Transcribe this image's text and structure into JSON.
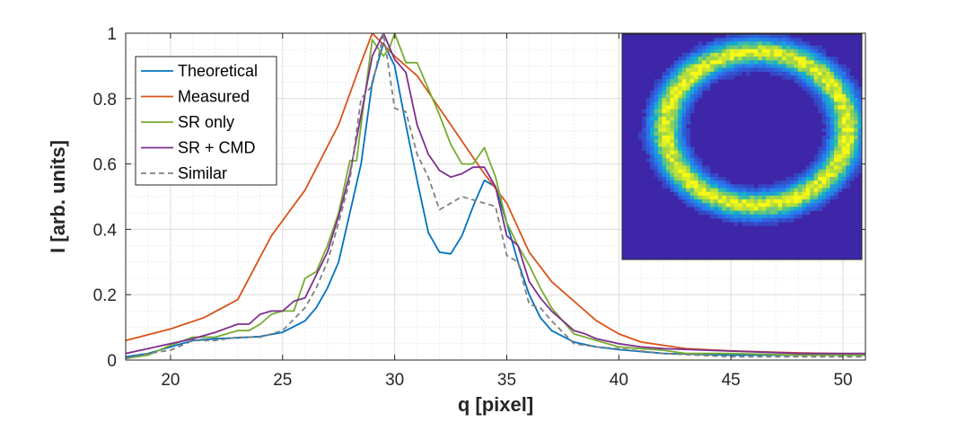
{
  "chart_data": {
    "type": "line",
    "title": "",
    "xlabel": "q [pixel]",
    "ylabel": "I [arb. units]",
    "xlim": [
      18,
      51
    ],
    "ylim": [
      0,
      1
    ],
    "xticks": [
      20,
      25,
      30,
      35,
      40,
      45,
      50
    ],
    "yticks": [
      0,
      0.2,
      0.4,
      0.6,
      0.8,
      1
    ],
    "xtick_labels": [
      "20",
      "25",
      "30",
      "35",
      "40",
      "45",
      "50"
    ],
    "ytick_labels": [
      "0",
      "0.2",
      "0.4",
      "0.6",
      "0.8",
      "1"
    ],
    "grid": true,
    "legend_position": "top-left",
    "series": [
      {
        "name": "Theoretical",
        "color": "#0072BD",
        "dash": "solid",
        "points": [
          [
            18,
            0.01
          ],
          [
            19,
            0.02
          ],
          [
            20,
            0.04
          ],
          [
            21,
            0.06
          ],
          [
            22,
            0.065
          ],
          [
            23,
            0.068
          ],
          [
            24,
            0.072
          ],
          [
            25,
            0.085
          ],
          [
            26,
            0.12
          ],
          [
            26.5,
            0.16
          ],
          [
            27,
            0.22
          ],
          [
            27.5,
            0.3
          ],
          [
            28,
            0.45
          ],
          [
            28.5,
            0.6
          ],
          [
            29,
            0.85
          ],
          [
            29.5,
            0.97
          ],
          [
            30,
            0.9
          ],
          [
            30.5,
            0.72
          ],
          [
            31,
            0.55
          ],
          [
            31.5,
            0.39
          ],
          [
            32,
            0.33
          ],
          [
            32.5,
            0.325
          ],
          [
            33,
            0.38
          ],
          [
            33.5,
            0.47
          ],
          [
            34,
            0.55
          ],
          [
            34.5,
            0.53
          ],
          [
            35,
            0.42
          ],
          [
            35.5,
            0.3
          ],
          [
            36,
            0.2
          ],
          [
            36.5,
            0.13
          ],
          [
            37,
            0.09
          ],
          [
            38,
            0.055
          ],
          [
            39,
            0.04
          ],
          [
            40,
            0.032
          ],
          [
            42,
            0.02
          ],
          [
            45,
            0.015
          ],
          [
            48,
            0.015
          ],
          [
            51,
            0.015
          ]
        ]
      },
      {
        "name": "Measured",
        "color": "#D95319",
        "dash": "solid",
        "points": [
          [
            18,
            0.06
          ],
          [
            20,
            0.095
          ],
          [
            21.5,
            0.13
          ],
          [
            23,
            0.185
          ],
          [
            24.5,
            0.38
          ],
          [
            26,
            0.52
          ],
          [
            27.5,
            0.72
          ],
          [
            28.5,
            0.91
          ],
          [
            29,
            1.0
          ],
          [
            30,
            0.93
          ],
          [
            31,
            0.87
          ],
          [
            32,
            0.77
          ],
          [
            33,
            0.67
          ],
          [
            34,
            0.57
          ],
          [
            35,
            0.48
          ],
          [
            36,
            0.33
          ],
          [
            37,
            0.24
          ],
          [
            38,
            0.18
          ],
          [
            39,
            0.12
          ],
          [
            40,
            0.08
          ],
          [
            41,
            0.055
          ],
          [
            42,
            0.045
          ],
          [
            43,
            0.035
          ],
          [
            45,
            0.028
          ],
          [
            48,
            0.022
          ],
          [
            51,
            0.018
          ]
        ]
      },
      {
        "name": "SR only",
        "color": "#77AC30",
        "dash": "solid",
        "points": [
          [
            18,
            0.005
          ],
          [
            19,
            0.015
          ],
          [
            20,
            0.045
          ],
          [
            21,
            0.07
          ],
          [
            22,
            0.07
          ],
          [
            23,
            0.09
          ],
          [
            23.5,
            0.09
          ],
          [
            24,
            0.11
          ],
          [
            24.5,
            0.14
          ],
          [
            25,
            0.15
          ],
          [
            25.5,
            0.15
          ],
          [
            26,
            0.25
          ],
          [
            26.5,
            0.27
          ],
          [
            27,
            0.35
          ],
          [
            27.5,
            0.45
          ],
          [
            28,
            0.61
          ],
          [
            28.3,
            0.61
          ],
          [
            28.5,
            0.72
          ],
          [
            29,
            0.98
          ],
          [
            29.5,
            0.93
          ],
          [
            29.8,
            0.96
          ],
          [
            30,
            1.0
          ],
          [
            30.5,
            0.91
          ],
          [
            31,
            0.91
          ],
          [
            32,
            0.75
          ],
          [
            32.5,
            0.66
          ],
          [
            33,
            0.6
          ],
          [
            33.5,
            0.6
          ],
          [
            34,
            0.65
          ],
          [
            34.5,
            0.56
          ],
          [
            35,
            0.42
          ],
          [
            35.5,
            0.35
          ],
          [
            36,
            0.29
          ],
          [
            36.5,
            0.22
          ],
          [
            37,
            0.16
          ],
          [
            37.5,
            0.12
          ],
          [
            38,
            0.08
          ],
          [
            38.5,
            0.07
          ],
          [
            39,
            0.06
          ],
          [
            40,
            0.04
          ],
          [
            41,
            0.035
          ],
          [
            42,
            0.03
          ],
          [
            43,
            0.02
          ],
          [
            45,
            0.02
          ],
          [
            48,
            0.015
          ],
          [
            51,
            0.015
          ]
        ]
      },
      {
        "name": "SR + CMD",
        "color": "#7E2F8E",
        "dash": "solid",
        "points": [
          [
            18,
            0.02
          ],
          [
            19,
            0.035
          ],
          [
            20,
            0.05
          ],
          [
            21,
            0.065
          ],
          [
            22,
            0.085
          ],
          [
            23,
            0.11
          ],
          [
            23.5,
            0.11
          ],
          [
            24,
            0.14
          ],
          [
            24.5,
            0.15
          ],
          [
            25,
            0.15
          ],
          [
            25.5,
            0.18
          ],
          [
            26,
            0.19
          ],
          [
            26.5,
            0.26
          ],
          [
            27,
            0.33
          ],
          [
            27.5,
            0.44
          ],
          [
            28,
            0.57
          ],
          [
            28.5,
            0.75
          ],
          [
            29,
            0.93
          ],
          [
            29.5,
            1.0
          ],
          [
            30,
            0.92
          ],
          [
            30.5,
            0.88
          ],
          [
            31,
            0.72
          ],
          [
            31.5,
            0.63
          ],
          [
            32,
            0.58
          ],
          [
            32.5,
            0.56
          ],
          [
            33,
            0.57
          ],
          [
            33.5,
            0.59
          ],
          [
            34,
            0.59
          ],
          [
            34.5,
            0.53
          ],
          [
            35,
            0.38
          ],
          [
            35.5,
            0.35
          ],
          [
            36,
            0.24
          ],
          [
            36.5,
            0.19
          ],
          [
            37,
            0.15
          ],
          [
            37.5,
            0.12
          ],
          [
            38,
            0.09
          ],
          [
            38.5,
            0.08
          ],
          [
            39,
            0.065
          ],
          [
            40,
            0.05
          ],
          [
            41,
            0.04
          ],
          [
            42,
            0.035
          ],
          [
            44,
            0.03
          ],
          [
            46,
            0.025
          ],
          [
            48,
            0.02
          ],
          [
            51,
            0.02
          ]
        ]
      },
      {
        "name": "Similar",
        "color": "#808080",
        "dash": "dashed",
        "points": [
          [
            18,
            0.005
          ],
          [
            19,
            0.02
          ],
          [
            20,
            0.03
          ],
          [
            21,
            0.06
          ],
          [
            22,
            0.06
          ],
          [
            23,
            0.07
          ],
          [
            24,
            0.07
          ],
          [
            25,
            0.09
          ],
          [
            26,
            0.16
          ],
          [
            26.5,
            0.22
          ],
          [
            27,
            0.3
          ],
          [
            27.5,
            0.42
          ],
          [
            28,
            0.55
          ],
          [
            28.5,
            0.8
          ],
          [
            29,
            0.84
          ],
          [
            29.5,
            1.0
          ],
          [
            30,
            0.77
          ],
          [
            30.5,
            0.76
          ],
          [
            31,
            0.63
          ],
          [
            31.5,
            0.56
          ],
          [
            32,
            0.46
          ],
          [
            32.5,
            0.48
          ],
          [
            33,
            0.5
          ],
          [
            33.5,
            0.49
          ],
          [
            34,
            0.48
          ],
          [
            34.5,
            0.47
          ],
          [
            35,
            0.32
          ],
          [
            35.5,
            0.3
          ],
          [
            36,
            0.17
          ],
          [
            36.5,
            0.16
          ],
          [
            37,
            0.12
          ],
          [
            38,
            0.05
          ],
          [
            39,
            0.04
          ],
          [
            40,
            0.035
          ],
          [
            42,
            0.02
          ],
          [
            45,
            0.01
          ],
          [
            48,
            0.01
          ],
          [
            51,
            0.01
          ]
        ]
      }
    ],
    "inset": {
      "type": "heatmap",
      "description_colormap": "parula",
      "pattern": "ring",
      "ring_center": [
        0.56,
        0.42
      ],
      "ring_radius_x": 0.38,
      "ring_radius_y": 0.34,
      "ring_width": 0.07
    }
  },
  "colors": {
    "inset_background": "#3E26A8"
  }
}
